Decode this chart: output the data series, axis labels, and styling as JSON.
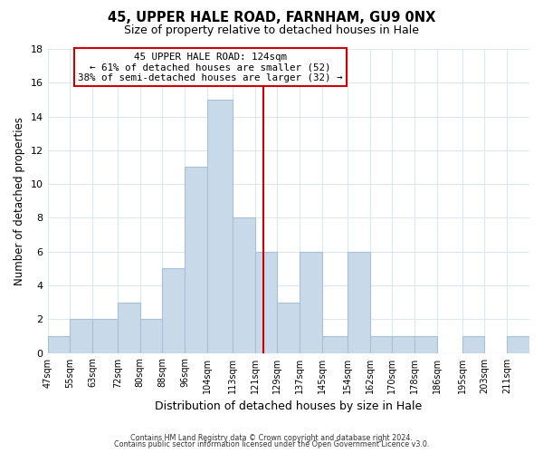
{
  "title": "45, UPPER HALE ROAD, FARNHAM, GU9 0NX",
  "subtitle": "Size of property relative to detached houses in Hale",
  "xlabel": "Distribution of detached houses by size in Hale",
  "ylabel": "Number of detached properties",
  "bar_color": "#c8daea",
  "bar_edge_color": "#a8c0d6",
  "bin_labels": [
    "47sqm",
    "55sqm",
    "63sqm",
    "72sqm",
    "80sqm",
    "88sqm",
    "96sqm",
    "104sqm",
    "113sqm",
    "121sqm",
    "129sqm",
    "137sqm",
    "145sqm",
    "154sqm",
    "162sqm",
    "170sqm",
    "178sqm",
    "186sqm",
    "195sqm",
    "203sqm",
    "211sqm"
  ],
  "bin_edges": [
    47,
    55,
    63,
    72,
    80,
    88,
    96,
    104,
    113,
    121,
    129,
    137,
    145,
    154,
    162,
    170,
    178,
    186,
    195,
    203,
    211,
    219
  ],
  "counts": [
    1,
    2,
    2,
    3,
    2,
    5,
    11,
    15,
    8,
    6,
    3,
    6,
    1,
    6,
    1,
    1,
    1,
    0,
    1,
    0,
    1
  ],
  "vline_x": 124,
  "vline_color": "#cc0000",
  "annotation_title": "45 UPPER HALE ROAD: 124sqm",
  "annotation_line1": "← 61% of detached houses are smaller (52)",
  "annotation_line2": "38% of semi-detached houses are larger (32) →",
  "annotation_box_color": "#ffffff",
  "annotation_box_edge": "#cc0000",
  "ylim": [
    0,
    18
  ],
  "yticks": [
    0,
    2,
    4,
    6,
    8,
    10,
    12,
    14,
    16,
    18
  ],
  "footer1": "Contains HM Land Registry data © Crown copyright and database right 2024.",
  "footer2": "Contains public sector information licensed under the Open Government Licence v3.0.",
  "background_color": "#ffffff",
  "grid_color": "#dce8f0"
}
